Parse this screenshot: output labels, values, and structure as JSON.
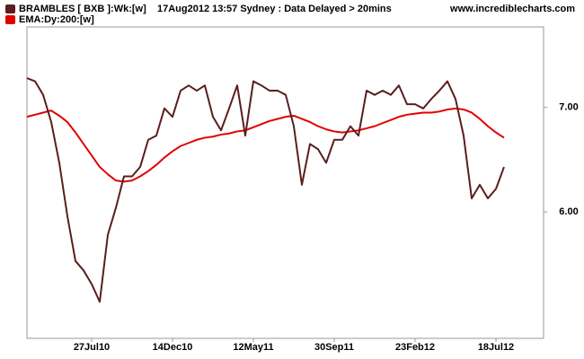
{
  "chart_data": {
    "type": "line",
    "info": "17Aug2012 13:57  Sydney : Data Delayed > 20mins",
    "source": "www.incrediblecharts.com",
    "categories": [
      null,
      null,
      null,
      null,
      null,
      null,
      null,
      null,
      "27Jul10",
      null,
      null,
      null,
      null,
      null,
      null,
      null,
      null,
      null,
      "14Dec10",
      null,
      null,
      null,
      null,
      null,
      null,
      null,
      null,
      null,
      "12May11",
      null,
      null,
      null,
      null,
      null,
      null,
      null,
      null,
      null,
      "30Sep11",
      null,
      null,
      null,
      null,
      null,
      null,
      null,
      null,
      null,
      "23Feb12",
      null,
      null,
      null,
      null,
      null,
      null,
      null,
      null,
      null,
      "18Jul12",
      null
    ],
    "series": [
      {
        "name": "BRAMBLES [ BXB ]:Wk:[w]",
        "color": "#5a1e1e",
        "values": [
          7.28,
          7.25,
          7.12,
          6.86,
          6.47,
          5.96,
          5.53,
          5.44,
          5.31,
          5.14,
          5.78,
          6.04,
          6.34,
          6.34,
          6.43,
          6.69,
          6.73,
          6.99,
          6.91,
          7.16,
          7.21,
          7.16,
          7.21,
          6.91,
          6.78,
          6.99,
          7.21,
          6.73,
          7.25,
          7.21,
          7.16,
          7.16,
          7.12,
          6.82,
          6.26,
          6.65,
          6.6,
          6.47,
          6.69,
          6.69,
          6.82,
          6.73,
          7.16,
          7.12,
          7.16,
          7.12,
          7.21,
          7.03,
          7.03,
          6.99,
          7.08,
          7.16,
          7.25,
          7.08,
          6.73,
          6.13,
          6.26,
          6.13,
          6.22,
          6.43
        ]
      },
      {
        "name": "EMA:Dy:200:[w]",
        "color": "#e00000",
        "values": [
          6.91,
          6.93,
          6.95,
          6.97,
          6.92,
          6.86,
          6.76,
          6.65,
          6.54,
          6.43,
          6.36,
          6.3,
          6.29,
          6.3,
          6.34,
          6.39,
          6.45,
          6.52,
          6.58,
          6.63,
          6.66,
          6.69,
          6.71,
          6.72,
          6.74,
          6.75,
          6.77,
          6.78,
          6.81,
          6.84,
          6.87,
          6.89,
          6.91,
          6.92,
          6.89,
          6.86,
          6.82,
          6.79,
          6.77,
          6.76,
          6.77,
          6.78,
          6.8,
          6.82,
          6.85,
          6.88,
          6.91,
          6.93,
          6.94,
          6.95,
          6.95,
          6.96,
          6.98,
          6.99,
          6.98,
          6.95,
          6.89,
          6.82,
          6.76,
          6.71
        ]
      }
    ],
    "ylim": [
      4.79,
      7.77
    ],
    "yticks": [
      {
        "value": 6,
        "label": "6.00"
      },
      {
        "value": 7,
        "label": "7.00"
      }
    ],
    "y_axis_side": "right",
    "grid": false
  }
}
